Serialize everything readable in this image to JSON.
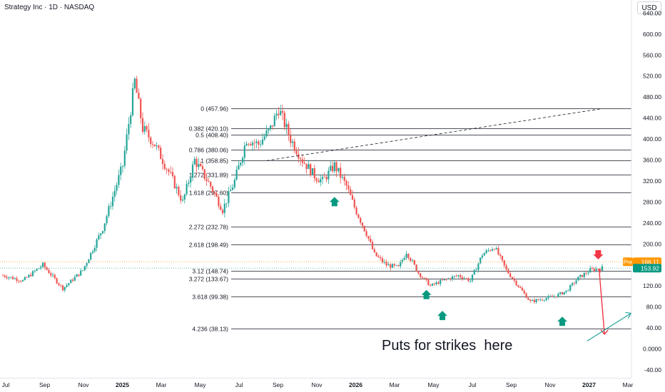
{
  "header": {
    "title": "Strategy Inc · 1D · NASDAQ",
    "currency": "USD"
  },
  "colors": {
    "up": "#26a69a",
    "down": "#ef5350",
    "fib_line": "#131722",
    "price_badge": "#089981",
    "pre_badge": "#ff9800",
    "red_arrow": "#f23645",
    "green_arrow": "#089981",
    "projection_up": "#26a69a",
    "projection_down": "#f23645"
  },
  "chart_data": {
    "type": "candlestick",
    "title": "Strategy Inc · 1D · NASDAQ",
    "y_axis": {
      "unit": "USD",
      "ticks": [
        "640.00",
        "600.00",
        "560.00",
        "520.00",
        "480.00",
        "440.00",
        "400.00",
        "360.00",
        "320.00",
        "280.00",
        "240.00",
        "200.00",
        "160.00",
        "120.00",
        "80.00",
        "40.00",
        "0.0000",
        "-40.00"
      ],
      "range": [
        -55,
        665
      ]
    },
    "x_axis": {
      "ticks": [
        "Jul",
        "Sep",
        "Nov",
        "2025",
        "Mar",
        "May",
        "Jul",
        "Sep",
        "Nov",
        "2026",
        "Mar",
        "May",
        "Jul",
        "Sep",
        "Nov",
        "2027",
        "Mar"
      ]
    },
    "price_path": [
      [
        0,
        140
      ],
      [
        5,
        130
      ],
      [
        10,
        160
      ],
      [
        15,
        115
      ],
      [
        20,
        150
      ],
      [
        25,
        230
      ],
      [
        30,
        350
      ],
      [
        33,
        510
      ],
      [
        35,
        420
      ],
      [
        38,
        390
      ],
      [
        42,
        330
      ],
      [
        45,
        280
      ],
      [
        48,
        360
      ],
      [
        52,
        310
      ],
      [
        55,
        265
      ],
      [
        58,
        320
      ],
      [
        61,
        400
      ],
      [
        64,
        390
      ],
      [
        67,
        420
      ],
      [
        69,
        458
      ],
      [
        72,
        400
      ],
      [
        75,
        360
      ],
      [
        78,
        330
      ],
      [
        80,
        320
      ],
      [
        83,
        350
      ],
      [
        86,
        310
      ],
      [
        88,
        270
      ],
      [
        91,
        220
      ],
      [
        93,
        180
      ],
      [
        96,
        160
      ],
      [
        99,
        155
      ],
      [
        101,
        185
      ],
      [
        104,
        145
      ],
      [
        107,
        120
      ],
      [
        110,
        130
      ],
      [
        114,
        140
      ],
      [
        117,
        130
      ],
      [
        120,
        180
      ],
      [
        123,
        195
      ],
      [
        126,
        150
      ],
      [
        129,
        120
      ],
      [
        132,
        90
      ],
      [
        135,
        95
      ],
      [
        138,
        100
      ],
      [
        141,
        110
      ],
      [
        144,
        135
      ],
      [
        147,
        150
      ],
      [
        150,
        154
      ]
    ],
    "price_badges": [
      {
        "label": "Pre",
        "value": "166.11",
        "price": 166.11
      },
      {
        "value": "153.92",
        "price": 153.92
      }
    ],
    "fib_levels": [
      {
        "label": "0 (457.96)",
        "price": 457.96
      },
      {
        "label": "0.382 (420.10)",
        "price": 420.1
      },
      {
        "label": "0.5 (408.40)",
        "price": 408.4
      },
      {
        "label": "0.786 (380.06)",
        "price": 380.06
      },
      {
        "label": "1 (358.85)",
        "price": 358.85
      },
      {
        "label": "1.272 (331.89)",
        "price": 331.89
      },
      {
        "label": "1.618 (297.60)",
        "price": 297.6
      },
      {
        "label": "2.272 (232.78)",
        "price": 232.78
      },
      {
        "label": "2.618 (198.49)",
        "price": 198.49
      },
      {
        "label": "3.12 (148.74)",
        "price": 148.74
      },
      {
        "label": "3.272 (133.67)",
        "price": 133.67
      },
      {
        "label": "3.618 (99.38)",
        "price": 99.38
      },
      {
        "label": "4.236 (38.13)",
        "price": 38.13
      }
    ],
    "trendline": {
      "from": [
        66,
        358.85
      ],
      "to": [
        150,
        457.96
      ],
      "style": "dashed"
    },
    "markers": [
      {
        "type": "green-up-arrow",
        "x": 83,
        "price": 280
      },
      {
        "type": "green-up-arrow",
        "x": 106,
        "price": 103
      },
      {
        "type": "green-up-arrow",
        "x": 110,
        "price": 63
      },
      {
        "type": "green-up-arrow",
        "x": 140,
        "price": 52
      },
      {
        "type": "red-down-arrow",
        "x": 149,
        "price": 180
      }
    ],
    "projection": {
      "down": {
        "from": [
          151,
          153
        ],
        "to": [
          152,
          28
        ]
      },
      "up": {
        "from": [
          148,
          15
        ],
        "to": [
          159,
          68
        ]
      }
    },
    "annotation": "Puts for strikes  here"
  }
}
